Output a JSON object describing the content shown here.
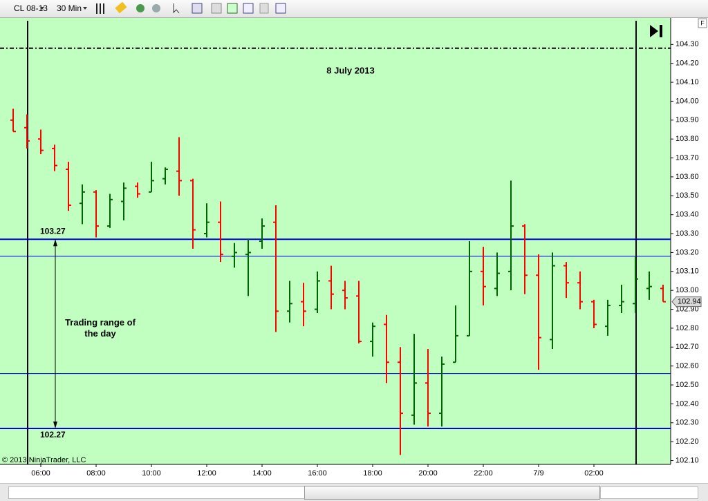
{
  "toolbar": {
    "instrument": "CL 08-13",
    "period": "30 Min",
    "corner_button": "F"
  },
  "chart_data": {
    "type": "ohlc",
    "background": "#c0ffc0",
    "up_color": "#006400",
    "down_color": "#ff0000",
    "categories": [
      null,
      null,
      "06:00",
      null,
      null,
      null,
      "08:00",
      null,
      null,
      null,
      "10:00",
      null,
      null,
      null,
      "12:00",
      null,
      null,
      null,
      "14:00",
      null,
      null,
      null,
      "16:00",
      null,
      null,
      null,
      "18:00",
      null,
      null,
      null,
      "20:00",
      null,
      null,
      null,
      "22:00",
      null,
      null,
      null,
      "7/9",
      null,
      null,
      null,
      "02:00",
      null,
      null,
      null,
      null,
      null
    ],
    "open": [
      103.9,
      103.86,
      103.8,
      103.75,
      103.64,
      103.46,
      103.52,
      103.34,
      103.47,
      103.55,
      103.52,
      103.59,
      103.63,
      103.58,
      103.3,
      103.36,
      103.18,
      103.19,
      103.26,
      103.36,
      102.89,
      102.94,
      102.9,
      103.05,
      103.0,
      102.97,
      102.73,
      102.82,
      102.62,
      102.34,
      102.51,
      102.35,
      102.62,
      102.76,
      103.1,
      103.01,
      103.1,
      103.34,
      103.08,
      102.74,
      103.13,
      103.04,
      102.94,
      102.81,
      102.92,
      102.93,
      103.01,
      103.01
    ],
    "high": [
      103.96,
      103.93,
      103.85,
      103.77,
      103.68,
      103.56,
      103.53,
      103.51,
      103.57,
      103.57,
      103.68,
      103.65,
      103.81,
      103.59,
      103.46,
      103.47,
      103.25,
      103.27,
      103.38,
      103.45,
      103.05,
      103.04,
      103.1,
      103.13,
      103.05,
      103.05,
      102.83,
      102.87,
      102.7,
      102.77,
      102.69,
      102.65,
      102.92,
      103.26,
      103.23,
      103.2,
      103.58,
      103.35,
      103.19,
      103.2,
      103.15,
      103.1,
      102.95,
      102.95,
      103.03,
      103.18,
      103.1,
      103.03
    ],
    "low": [
      103.84,
      103.75,
      103.72,
      103.63,
      103.42,
      103.35,
      103.28,
      103.33,
      103.37,
      103.49,
      103.52,
      103.56,
      103.5,
      103.22,
      103.28,
      103.15,
      103.12,
      102.97,
      103.22,
      102.78,
      102.83,
      102.81,
      102.88,
      102.9,
      102.9,
      102.72,
      102.65,
      102.51,
      102.13,
      102.29,
      102.28,
      102.28,
      102.62,
      102.76,
      102.92,
      102.97,
      103.0,
      102.98,
      102.58,
      102.69,
      102.96,
      102.9,
      102.8,
      102.76,
      102.88,
      102.88,
      102.95,
      102.94
    ],
    "close": [
      103.84,
      103.79,
      103.74,
      103.66,
      103.45,
      103.52,
      103.34,
      103.48,
      103.54,
      103.51,
      103.58,
      103.64,
      103.58,
      103.32,
      103.36,
      103.19,
      103.2,
      103.2,
      103.34,
      102.89,
      102.93,
      102.89,
      103.05,
      102.98,
      102.96,
      102.73,
      102.81,
      102.62,
      102.35,
      102.51,
      102.35,
      102.61,
      102.76,
      103.1,
      103.02,
      103.09,
      103.34,
      103.08,
      102.75,
      103.13,
      103.04,
      102.94,
      102.82,
      102.92,
      102.94,
      103.06,
      103.02,
      102.94
    ],
    "last_price_label": "102.94",
    "ylim": [
      102.08,
      104.44
    ],
    "yticks": [
      {
        "value": 102.1,
        "label": "102.10"
      },
      {
        "value": 102.2,
        "label": "102.20"
      },
      {
        "value": 102.3,
        "label": "102.30"
      },
      {
        "value": 102.4,
        "label": "102.40"
      },
      {
        "value": 102.5,
        "label": "102.50"
      },
      {
        "value": 102.6,
        "label": "102.60"
      },
      {
        "value": 102.7,
        "label": "102.70"
      },
      {
        "value": 102.8,
        "label": "102.80"
      },
      {
        "value": 102.9,
        "label": "102.90"
      },
      {
        "value": 103.0,
        "label": "103.00"
      },
      {
        "value": 103.1,
        "label": "103.10"
      },
      {
        "value": 103.2,
        "label": "103.20"
      },
      {
        "value": 103.3,
        "label": "103.30"
      },
      {
        "value": 103.4,
        "label": "103.40"
      },
      {
        "value": 103.5,
        "label": "103.50"
      },
      {
        "value": 103.6,
        "label": "103.60"
      },
      {
        "value": 103.7,
        "label": "103.70"
      },
      {
        "value": 103.8,
        "label": "103.80"
      },
      {
        "value": 103.9,
        "label": "103.90"
      },
      {
        "value": 104.0,
        "label": "104.00"
      },
      {
        "value": 104.1,
        "label": "104.10"
      },
      {
        "value": 104.2,
        "label": "104.20"
      },
      {
        "value": 104.3,
        "label": "104.30"
      }
    ],
    "level_lines": [
      {
        "value": 103.27,
        "label": "103.27",
        "width": 2,
        "color": "#0000e0"
      },
      {
        "value": 103.18,
        "width": 1,
        "color": "#0000e0"
      },
      {
        "value": 102.56,
        "width": 1,
        "color": "#0000e0"
      },
      {
        "value": 102.27,
        "label": "102.27",
        "width": 2,
        "color": "#0000e0"
      }
    ],
    "dash_line": {
      "value": 104.28,
      "color": "#000000"
    },
    "annotations": {
      "date": "8 July 2013",
      "range_note": "Trading range of the day",
      "copyright": "© 2013 NinjaTrader, LLC"
    }
  }
}
